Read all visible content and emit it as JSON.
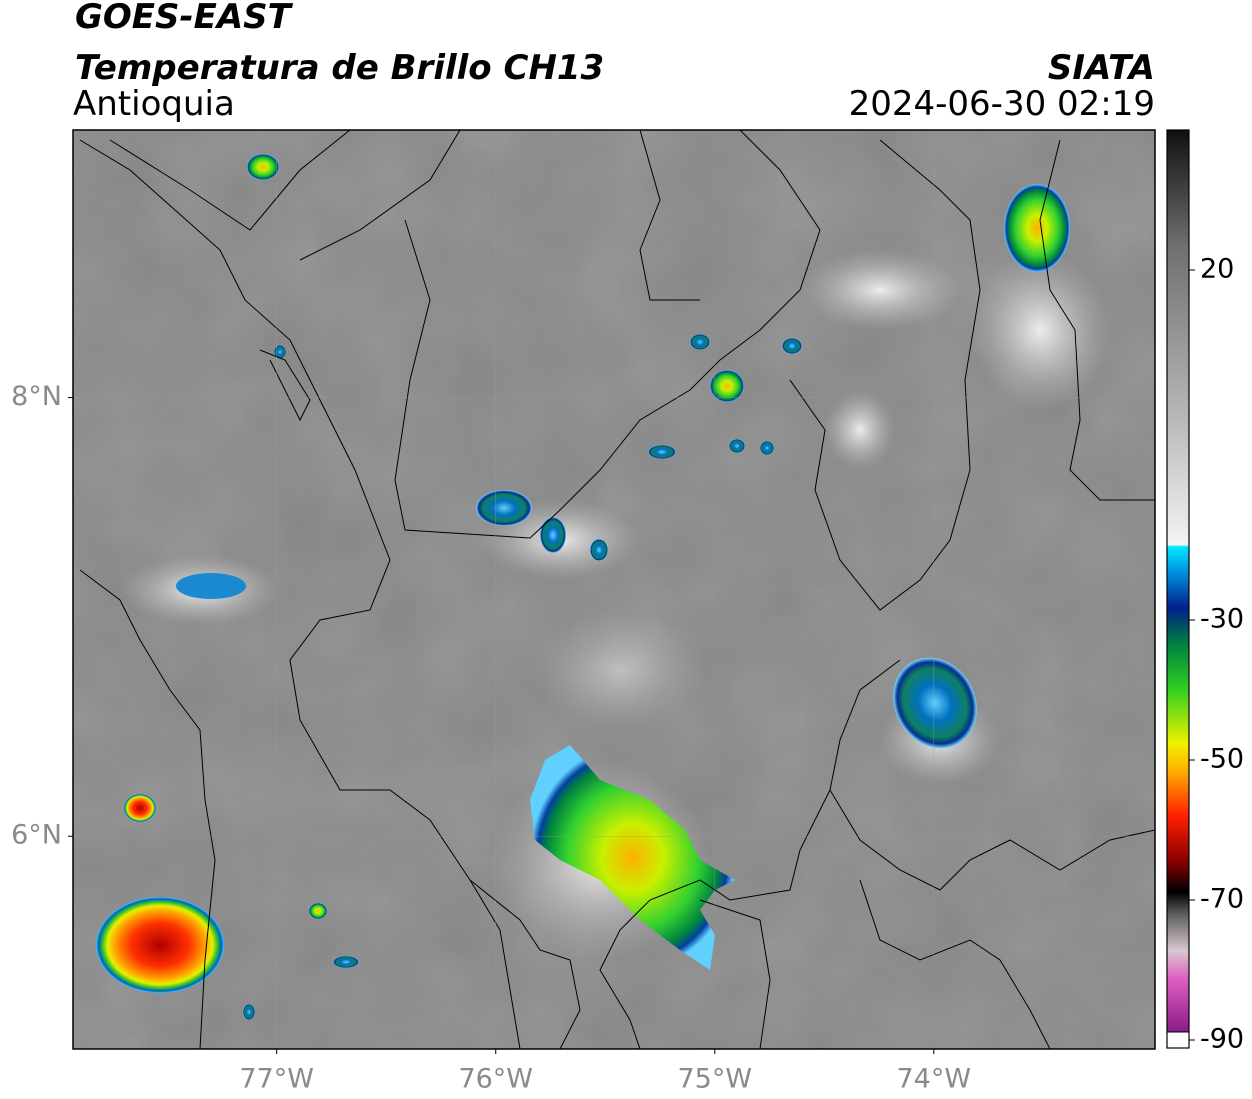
{
  "header": {
    "title": "GOES-EAST",
    "subtitle": "Temperatura de Brillo CH13",
    "region": "Antioquia",
    "source": "SIATA",
    "datetime": "2024-06-30 02:19"
  },
  "map": {
    "xlim": [
      -77.93,
      -72.99
    ],
    "ylim": [
      5.03,
      9.22
    ],
    "xticks": [
      {
        "value": -77,
        "label": "77°W"
      },
      {
        "value": -76,
        "label": "76°W"
      },
      {
        "value": -75,
        "label": "75°W"
      },
      {
        "value": -74,
        "label": "74°W"
      }
    ],
    "yticks": [
      {
        "value": 8,
        "label": "8°N"
      },
      {
        "value": 6,
        "label": "6°N"
      }
    ],
    "grid": true
  },
  "colorbar": {
    "lim": [
      -90,
      40
    ],
    "ticks": [
      20,
      -30,
      -50,
      -70,
      -90
    ]
  }
}
